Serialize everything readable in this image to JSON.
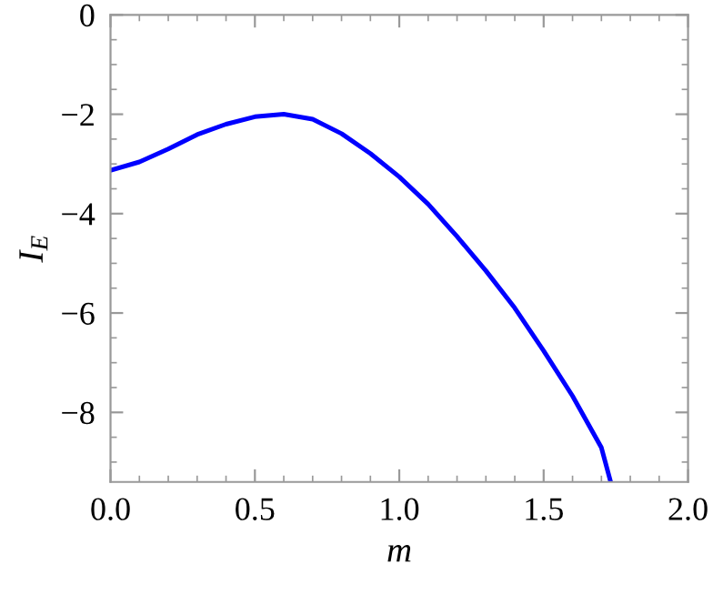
{
  "chart_data": {
    "type": "line",
    "xlabel": "m",
    "ylabel": "I$_{E}$",
    "x": [
      0.0,
      0.1,
      0.2,
      0.3,
      0.4,
      0.5,
      0.6,
      0.7,
      0.8,
      0.9,
      1.0,
      1.1,
      1.2,
      1.3,
      1.4,
      1.5,
      1.6,
      1.7,
      1.732
    ],
    "series": [
      {
        "color": "#0000ff",
        "values": [
          -3.13,
          -2.96,
          -2.7,
          -2.41,
          -2.2,
          -2.05,
          -2.0,
          -2.1,
          -2.39,
          -2.79,
          -3.26,
          -3.81,
          -4.46,
          -5.15,
          -5.9,
          -6.76,
          -7.67,
          -8.71,
          -9.4
        ]
      }
    ],
    "xlim": [
      0.0,
      2.0
    ],
    "ylim": [
      -9.4,
      0
    ],
    "xticks": [
      {
        "value": 0,
        "label": "0.0"
      },
      0.5,
      {
        "value": 1,
        "label": "1.0"
      },
      1.5,
      {
        "value": 2,
        "label": "2.0"
      }
    ],
    "yticks": [
      -8,
      -6,
      -4,
      -2,
      0
    ],
    "grid": false,
    "legend": false,
    "marker": "none",
    "line_style": "solid"
  }
}
